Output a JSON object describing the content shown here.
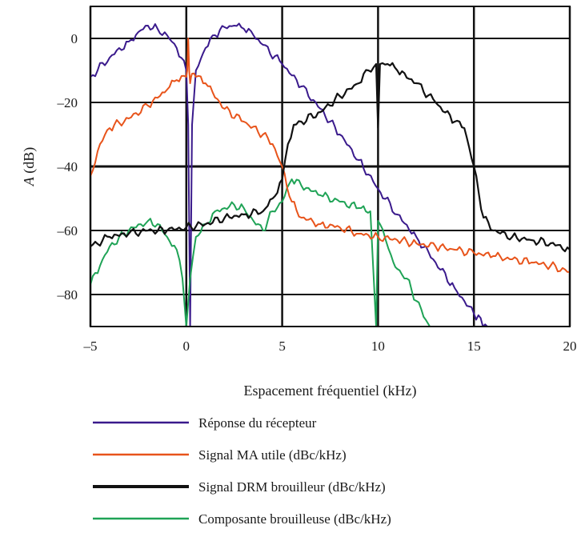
{
  "chart_data": {
    "type": "line",
    "title": "",
    "xlabel": "Espacement fréquentiel (kHz)",
    "ylabel_italic": "A",
    "ylabel_rest": " (dB)",
    "xlim": [
      -5,
      20
    ],
    "ylim": [
      -90,
      10
    ],
    "xticks": [
      -5,
      0,
      5,
      10,
      15,
      20
    ],
    "xtick_labels": [
      "–5",
      "0",
      "5",
      "10",
      "15",
      "20"
    ],
    "yticks": [
      0,
      -20,
      -40,
      -60,
      -80
    ],
    "ytick_labels": [
      "0",
      "–20",
      "–40",
      "–60",
      "–80"
    ],
    "grid": true,
    "legend_position": "bottom",
    "series": [
      {
        "name": "Réponse du récepteur",
        "color": "#3a1a8c",
        "width": 2,
        "x": [
          -5,
          -4,
          -3,
          -2.5,
          -2,
          -1.5,
          -1,
          -0.5,
          0,
          0.1,
          0.2,
          0.3,
          0.5,
          1,
          1.5,
          2,
          2.5,
          3,
          3.5,
          4,
          5,
          6,
          7,
          8,
          9,
          10,
          11,
          12,
          13,
          14,
          15,
          15.7,
          20
        ],
        "y": [
          -12,
          -6,
          -1,
          2,
          4,
          3,
          1,
          -3,
          -10,
          -27,
          -90,
          -27,
          -10,
          -3,
          1,
          3.5,
          4,
          3,
          1,
          -2,
          -8,
          -15,
          -22,
          -30,
          -38,
          -47,
          -55,
          -62,
          -70,
          -78,
          -86,
          -90,
          -90
        ]
      },
      {
        "name": "Signal MA utile (dBc/kHz)",
        "color": "#e8541b",
        "width": 2,
        "x": [
          -5,
          -4.5,
          -4,
          -3,
          -2,
          -1,
          -0.5,
          0,
          0.05,
          0.1,
          0.15,
          0.2,
          0.25,
          0.3,
          0.5,
          1,
          2,
          3,
          4,
          4.5,
          5,
          5.5,
          6,
          7,
          8,
          9,
          10,
          11,
          12,
          13,
          14,
          15,
          16,
          17,
          18,
          19,
          20
        ],
        "y": [
          -43,
          -33,
          -28,
          -25,
          -21,
          -16,
          -13,
          -12,
          -10,
          0,
          -10,
          -14,
          -12,
          -11,
          -12,
          -14,
          -22,
          -26,
          -30,
          -33,
          -40,
          -51,
          -56,
          -58,
          -59,
          -61,
          -62,
          -63,
          -64,
          -65,
          -66,
          -67,
          -68,
          -69,
          -70,
          -71,
          -73
        ]
      },
      {
        "name": "Signal DRM brouilleur (dBc/kHz)",
        "color": "#111111",
        "width": 2.2,
        "x": [
          -5,
          -4,
          -3,
          -2,
          -1,
          0,
          1,
          2,
          3,
          4,
          4.5,
          5,
          5.3,
          5.6,
          6,
          7,
          8,
          9,
          9.5,
          9.9,
          10,
          10.1,
          10.5,
          11,
          12,
          13,
          14,
          14.5,
          15,
          15.5,
          16,
          17,
          18,
          19,
          20
        ],
        "y": [
          -65,
          -62,
          -61,
          -60,
          -60,
          -59,
          -58,
          -56,
          -55,
          -54,
          -50,
          -44,
          -33,
          -27,
          -26,
          -23,
          -18,
          -14,
          -10,
          -8,
          -28,
          -8,
          -8,
          -10,
          -14,
          -20,
          -26,
          -28,
          -40,
          -56,
          -60,
          -62,
          -63,
          -64,
          -66
        ]
      },
      {
        "name": "Composante brouilleuse (dBc/kHz)",
        "color": "#1fa356",
        "width": 2,
        "x": [
          -5,
          -4.5,
          -4,
          -3,
          -2,
          -1.5,
          -1,
          -0.5,
          -0.2,
          0,
          0.2,
          0.5,
          1,
          1.5,
          2,
          2.5,
          3,
          3.5,
          4,
          4.5,
          5,
          5.5,
          6,
          7,
          8,
          9,
          9.6,
          9.9,
          10,
          10.1,
          10.4,
          10.8,
          11,
          11.5,
          12,
          12.5,
          12.7
        ],
        "y": [
          -77,
          -71,
          -65,
          -60,
          -57,
          -58,
          -62,
          -66,
          -75,
          -90,
          -75,
          -62,
          -58,
          -54,
          -53,
          -52,
          -53,
          -57,
          -60,
          -54,
          -51,
          -44,
          -46,
          -49,
          -51,
          -53,
          -54,
          -90,
          -57,
          -58,
          -63,
          -70,
          -72,
          -75,
          -82,
          -88,
          -90
        ]
      }
    ]
  }
}
